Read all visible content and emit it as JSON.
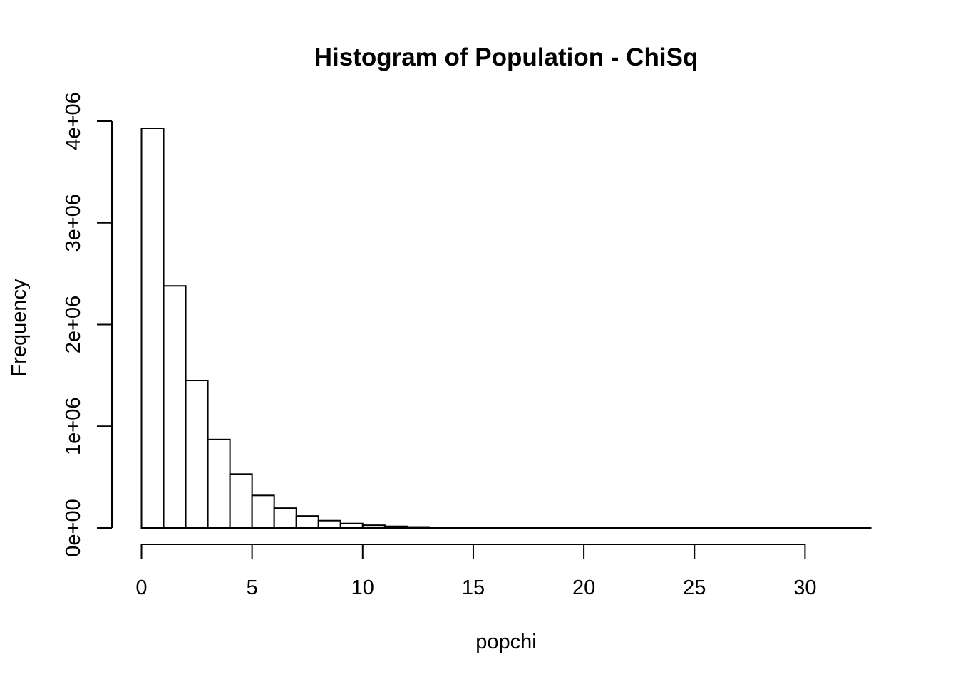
{
  "chart_data": {
    "type": "bar",
    "title": "Histogram of Population - ChiSq",
    "xlabel": "popchi",
    "ylabel": "Frequency",
    "bin_edges": [
      0,
      1,
      2,
      3,
      4,
      5,
      6,
      7,
      8,
      9,
      10,
      11,
      12,
      13,
      14,
      15,
      16,
      17,
      18,
      19,
      20,
      21,
      22,
      23,
      24,
      25,
      26,
      27,
      28,
      29,
      30,
      31,
      32,
      33
    ],
    "values": [
      3930000,
      2380000,
      1450000,
      870000,
      530000,
      320000,
      195000,
      118000,
      72000,
      44000,
      27000,
      16000,
      10000,
      6000,
      3600,
      2200,
      1300,
      800,
      500,
      300,
      180,
      110,
      65,
      40,
      24,
      15,
      9,
      5,
      3,
      2,
      1,
      1,
      1
    ],
    "xlim": [
      0,
      33
    ],
    "ylim": [
      0,
      4000000
    ],
    "x_ticks": [
      0,
      5,
      10,
      15,
      20,
      25,
      30
    ],
    "x_tick_labels": [
      "0",
      "5",
      "10",
      "15",
      "20",
      "25",
      "30"
    ],
    "y_ticks": [
      0,
      1000000,
      2000000,
      3000000,
      4000000
    ],
    "y_tick_labels": [
      "0e+00",
      "1e+06",
      "2e+06",
      "3e+06",
      "4e+06"
    ],
    "grid": false,
    "legend": "none",
    "bar_fill": "#ffffff",
    "bar_stroke": "#000000"
  }
}
